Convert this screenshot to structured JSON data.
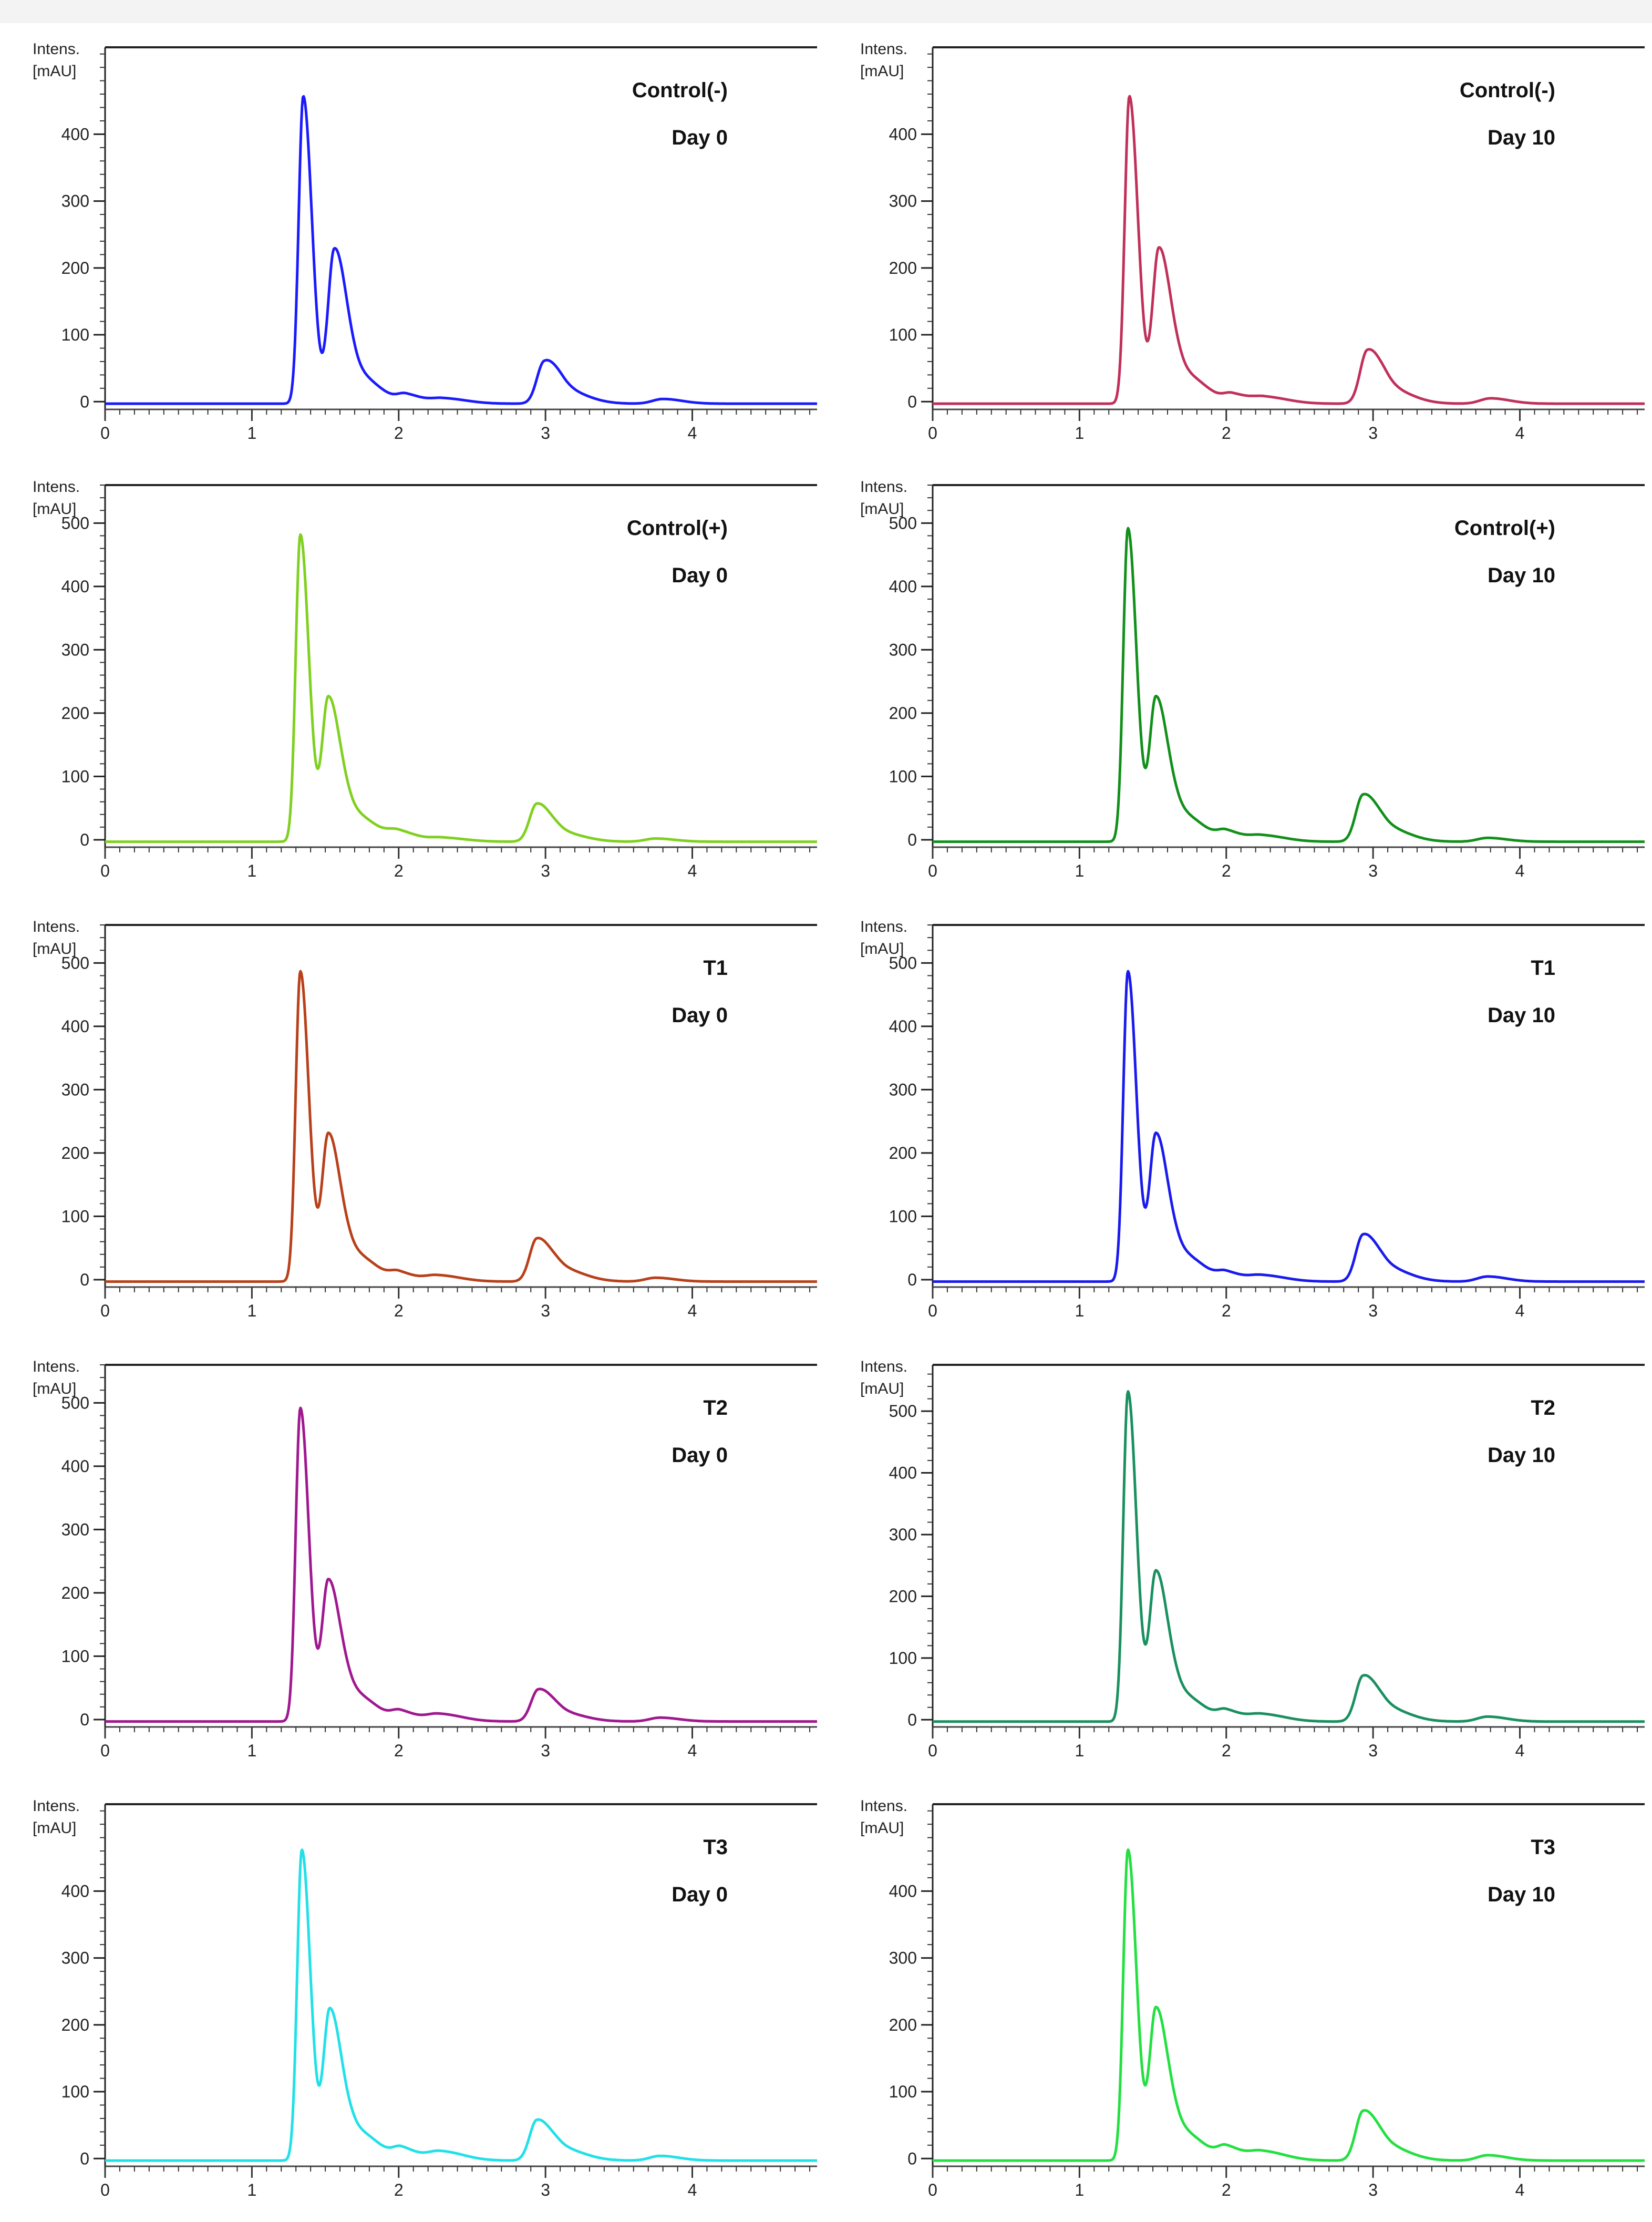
{
  "axis": {
    "y_title_line1": "Intens.",
    "y_title_line2": "[mAU]",
    "x_ticks": [
      "0",
      "1",
      "2",
      "3",
      "4"
    ],
    "xlim": [
      0,
      4.85
    ]
  },
  "chart_data": [
    {
      "type": "line",
      "title": "Control(-)",
      "subtitle": "Day 0",
      "color": "#1a1aff",
      "ylim": [
        -10,
        530
      ],
      "yticks": [
        0,
        100,
        200,
        300,
        400
      ],
      "peaks": [
        [
          1.35,
          460,
          0.045
        ],
        [
          1.56,
          220,
          0.06
        ],
        [
          1.7,
          45,
          0.12
        ],
        [
          2.05,
          12,
          0.08
        ],
        [
          2.3,
          8,
          0.12
        ],
        [
          2.99,
          58,
          0.07
        ],
        [
          3.12,
          20,
          0.12
        ],
        [
          3.8,
          7,
          0.1
        ]
      ]
    },
    {
      "type": "line",
      "title": "Control(-)",
      "subtitle": "Day 10",
      "color": "#c0305a",
      "ylim": [
        -10,
        530
      ],
      "yticks": [
        0,
        100,
        200,
        300,
        400
      ],
      "peaks": [
        [
          1.34,
          460,
          0.045
        ],
        [
          1.54,
          225,
          0.06
        ],
        [
          1.7,
          45,
          0.12
        ],
        [
          2.04,
          12,
          0.08
        ],
        [
          2.26,
          10,
          0.12
        ],
        [
          2.96,
          75,
          0.07
        ],
        [
          3.1,
          22,
          0.12
        ],
        [
          3.8,
          8,
          0.1
        ]
      ]
    },
    {
      "type": "line",
      "title": "Control(+)",
      "subtitle": "Day 0",
      "color": "#80d020",
      "ylim": [
        -10,
        560
      ],
      "yticks": [
        0,
        100,
        200,
        300,
        400,
        500
      ],
      "peaks": [
        [
          1.33,
          485,
          0.045
        ],
        [
          1.52,
          220,
          0.06
        ],
        [
          1.68,
          45,
          0.12
        ],
        [
          2.0,
          14,
          0.1
        ],
        [
          2.3,
          6,
          0.12
        ],
        [
          2.94,
          58,
          0.07
        ],
        [
          3.1,
          14,
          0.12
        ],
        [
          3.75,
          5,
          0.1
        ]
      ]
    },
    {
      "type": "line",
      "title": "Control(+)",
      "subtitle": "Day 10",
      "color": "#12901a",
      "ylim": [
        -10,
        560
      ],
      "yticks": [
        0,
        100,
        200,
        300,
        400,
        500
      ],
      "peaks": [
        [
          1.33,
          495,
          0.045
        ],
        [
          1.52,
          220,
          0.06
        ],
        [
          1.68,
          45,
          0.12
        ],
        [
          2.0,
          14,
          0.08
        ],
        [
          2.24,
          10,
          0.12
        ],
        [
          2.93,
          70,
          0.07
        ],
        [
          3.08,
          22,
          0.12
        ],
        [
          3.78,
          6,
          0.1
        ]
      ]
    },
    {
      "type": "line",
      "title": "T1",
      "subtitle": "Day 0",
      "color": "#b8401a",
      "ylim": [
        -10,
        560
      ],
      "yticks": [
        0,
        100,
        200,
        300,
        400,
        500
      ],
      "peaks": [
        [
          1.33,
          490,
          0.045
        ],
        [
          1.52,
          225,
          0.06
        ],
        [
          1.68,
          45,
          0.12
        ],
        [
          2.0,
          12,
          0.08
        ],
        [
          2.26,
          10,
          0.12
        ],
        [
          2.94,
          65,
          0.07
        ],
        [
          3.1,
          20,
          0.12
        ],
        [
          3.75,
          6,
          0.1
        ]
      ]
    },
    {
      "type": "line",
      "title": "T1",
      "subtitle": "Day 10",
      "color": "#1a1aee",
      "ylim": [
        -10,
        560
      ],
      "yticks": [
        0,
        100,
        200,
        300,
        400,
        500
      ],
      "peaks": [
        [
          1.33,
          490,
          0.045
        ],
        [
          1.52,
          225,
          0.06
        ],
        [
          1.68,
          45,
          0.12
        ],
        [
          2.0,
          12,
          0.08
        ],
        [
          2.24,
          10,
          0.12
        ],
        [
          2.93,
          70,
          0.07
        ],
        [
          3.08,
          22,
          0.12
        ],
        [
          3.78,
          8,
          0.1
        ]
      ]
    },
    {
      "type": "line",
      "title": "T2",
      "subtitle": "Day 0",
      "color": "#a01890",
      "ylim": [
        -10,
        560
      ],
      "yticks": [
        0,
        100,
        200,
        300,
        400,
        500
      ],
      "peaks": [
        [
          1.33,
          495,
          0.045
        ],
        [
          1.52,
          215,
          0.06
        ],
        [
          1.68,
          45,
          0.12
        ],
        [
          2.01,
          14,
          0.08
        ],
        [
          2.27,
          12,
          0.12
        ],
        [
          2.95,
          48,
          0.07
        ],
        [
          3.1,
          14,
          0.12
        ],
        [
          3.78,
          6,
          0.1
        ]
      ]
    },
    {
      "type": "line",
      "title": "T2",
      "subtitle": "Day 10",
      "color": "#1a9060",
      "ylim": [
        -10,
        575
      ],
      "yticks": [
        0,
        100,
        200,
        300,
        400,
        500
      ],
      "peaks": [
        [
          1.33,
          535,
          0.045
        ],
        [
          1.52,
          235,
          0.06
        ],
        [
          1.68,
          45,
          0.12
        ],
        [
          2.0,
          15,
          0.08
        ],
        [
          2.24,
          12,
          0.12
        ],
        [
          2.93,
          70,
          0.07
        ],
        [
          3.08,
          22,
          0.12
        ],
        [
          3.78,
          8,
          0.1
        ]
      ]
    },
    {
      "type": "line",
      "title": "T3",
      "subtitle": "Day 0",
      "color": "#20e0e8",
      "ylim": [
        -10,
        530
      ],
      "yticks": [
        0,
        100,
        200,
        300,
        400
      ],
      "peaks": [
        [
          1.34,
          465,
          0.045
        ],
        [
          1.53,
          220,
          0.06
        ],
        [
          1.7,
          45,
          0.12
        ],
        [
          2.02,
          16,
          0.08
        ],
        [
          2.28,
          14,
          0.12
        ],
        [
          2.94,
          58,
          0.07
        ],
        [
          3.1,
          18,
          0.12
        ],
        [
          3.78,
          7,
          0.1
        ]
      ]
    },
    {
      "type": "line",
      "title": "T3",
      "subtitle": "Day 10",
      "color": "#22e040",
      "ylim": [
        -10,
        530
      ],
      "yticks": [
        0,
        100,
        200,
        300,
        400
      ],
      "peaks": [
        [
          1.33,
          465,
          0.045
        ],
        [
          1.52,
          220,
          0.06
        ],
        [
          1.68,
          45,
          0.12
        ],
        [
          2.0,
          18,
          0.08
        ],
        [
          2.24,
          14,
          0.12
        ],
        [
          2.93,
          70,
          0.07
        ],
        [
          3.08,
          22,
          0.12
        ],
        [
          3.78,
          8,
          0.1
        ]
      ]
    }
  ]
}
